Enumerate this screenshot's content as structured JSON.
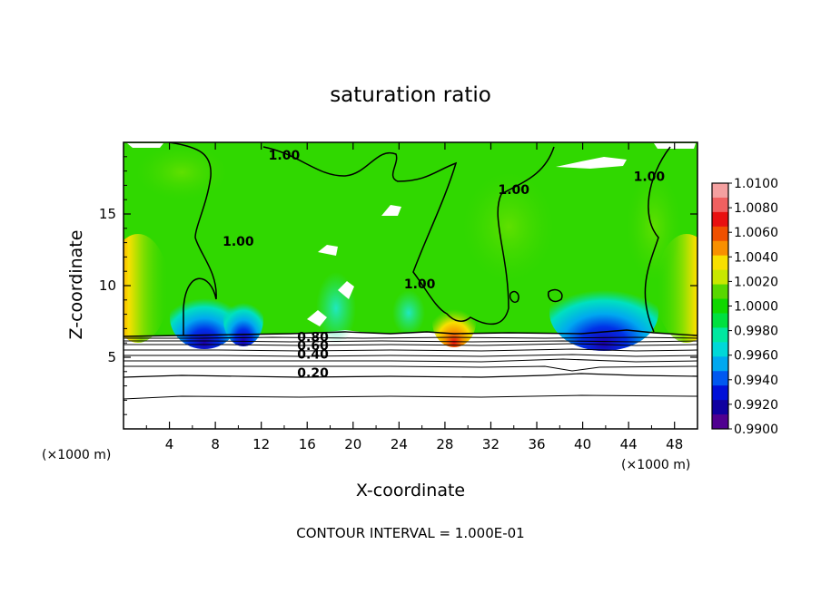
{
  "chart_data": {
    "type": "heatmap",
    "title": "saturation ratio",
    "xlabel": "X-coordinate",
    "ylabel": "Z-coordinate",
    "x_unit": "(×1000 m)",
    "z_unit": "(×1000 m)",
    "xlim": [
      0,
      50
    ],
    "ylim": [
      0,
      20
    ],
    "xticks": [
      4,
      8,
      12,
      16,
      20,
      24,
      28,
      32,
      36,
      40,
      44,
      48
    ],
    "yticks": [
      5,
      10,
      15
    ],
    "footer": "CONTOUR INTERVAL = 1.000E-01",
    "colorbar": {
      "labels": [
        "1.0100",
        "1.0080",
        "1.0060",
        "1.0040",
        "1.0020",
        "1.0000",
        "0.9980",
        "0.9960",
        "0.9940",
        "0.9920",
        "0.9900"
      ],
      "min": 0.99,
      "max": 1.01,
      "colors": [
        "#f4a0a0",
        "#f06060",
        "#e81010",
        "#f05000",
        "#f89000",
        "#f8e000",
        "#c8e800",
        "#58d800",
        "#10d800",
        "#00e040",
        "#00e8a0",
        "#00d8d8",
        "#00a8f0",
        "#0058f0",
        "#0010d8",
        "#1000a0",
        "#500090"
      ]
    },
    "contour_labels": [
      {
        "text": "1.00",
        "x": 10.0,
        "z": 12.8
      },
      {
        "text": "1.00",
        "x": 14.0,
        "z": 18.8
      },
      {
        "text": "1.00",
        "x": 34.0,
        "z": 16.4
      },
      {
        "text": "1.00",
        "x": 45.8,
        "z": 17.3
      },
      {
        "text": "1.00",
        "x": 25.8,
        "z": 9.8
      },
      {
        "text": "0.80",
        "x": 16.5,
        "z": 6.1
      },
      {
        "text": "0.60",
        "x": 16.5,
        "z": 5.5
      },
      {
        "text": "0.40",
        "x": 16.5,
        "z": 4.9
      },
      {
        "text": "0.20",
        "x": 16.5,
        "z": 3.6
      }
    ],
    "subsaturated_contours_z": [
      6.4,
      6.2,
      6.0,
      5.8,
      5.5,
      5.2,
      4.9,
      4.5,
      3.7,
      2.2
    ]
  }
}
